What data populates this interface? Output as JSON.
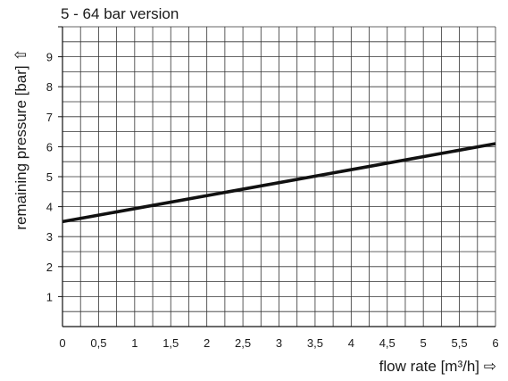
{
  "chart_data": {
    "type": "line",
    "title": "5 - 64 bar version",
    "xlabel": "flow rate [m³/h] ⇨",
    "ylabel": "remaining pressure [bar] ⇧",
    "xlim": [
      0,
      6
    ],
    "ylim": [
      0,
      10
    ],
    "x_ticks": [
      "0",
      "0,5",
      "1",
      "1,5",
      "2",
      "2,5",
      "3",
      "3,5",
      "4",
      "4,5",
      "5",
      "5,5",
      "6"
    ],
    "y_ticks": [
      "1",
      "2",
      "3",
      "4",
      "5",
      "6",
      "7",
      "8",
      "9"
    ],
    "grid": true,
    "series": [
      {
        "x": [
          0,
          6
        ],
        "y": [
          3.5,
          6.1
        ]
      }
    ]
  }
}
